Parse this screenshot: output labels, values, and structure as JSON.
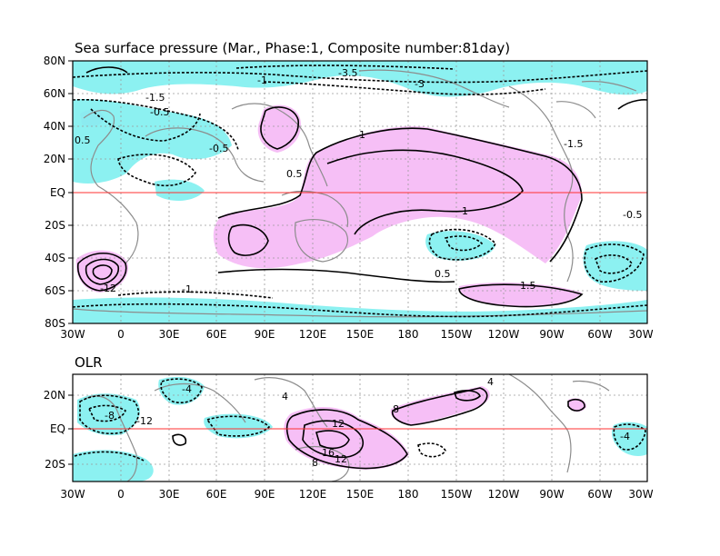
{
  "panels": [
    {
      "title": "Sea surface pressure (Mar., Phase:1, Composite number:81day)",
      "y_ticks": [
        "80N",
        "60N",
        "40N",
        "20N",
        "EQ",
        "20S",
        "40S",
        "60S",
        "80S"
      ],
      "x_ticks": [
        "30W",
        "0",
        "30E",
        "60E",
        "90E",
        "120E",
        "150E",
        "180",
        "150W",
        "120W",
        "90W",
        "60W",
        "30W"
      ],
      "contour_labels": [
        "-1.5",
        "-1",
        "-0.5",
        "-3",
        "-3.5",
        "0.5",
        "1",
        "1.5",
        "-12",
        "-0.5",
        "-1.5",
        "0.5",
        "1",
        "-0.5",
        "-1",
        "0.5"
      ]
    },
    {
      "title": "OLR",
      "y_ticks": [
        "20N",
        "EQ",
        "20S"
      ],
      "x_ticks": [
        "30W",
        "0",
        "30E",
        "60E",
        "90E",
        "120E",
        "150E",
        "180",
        "150W",
        "120W",
        "90W",
        "60W",
        "30W"
      ],
      "contour_labels": [
        "-8",
        "-12",
        "-4",
        "4",
        "8",
        "12",
        "16",
        "12",
        "8",
        "4",
        "-4"
      ]
    }
  ],
  "colors": {
    "negative_shade": "#7ff0f0",
    "positive_shade": "#f5b8f5",
    "equator": "#ff3030",
    "coast": "#8c8c8c"
  }
}
